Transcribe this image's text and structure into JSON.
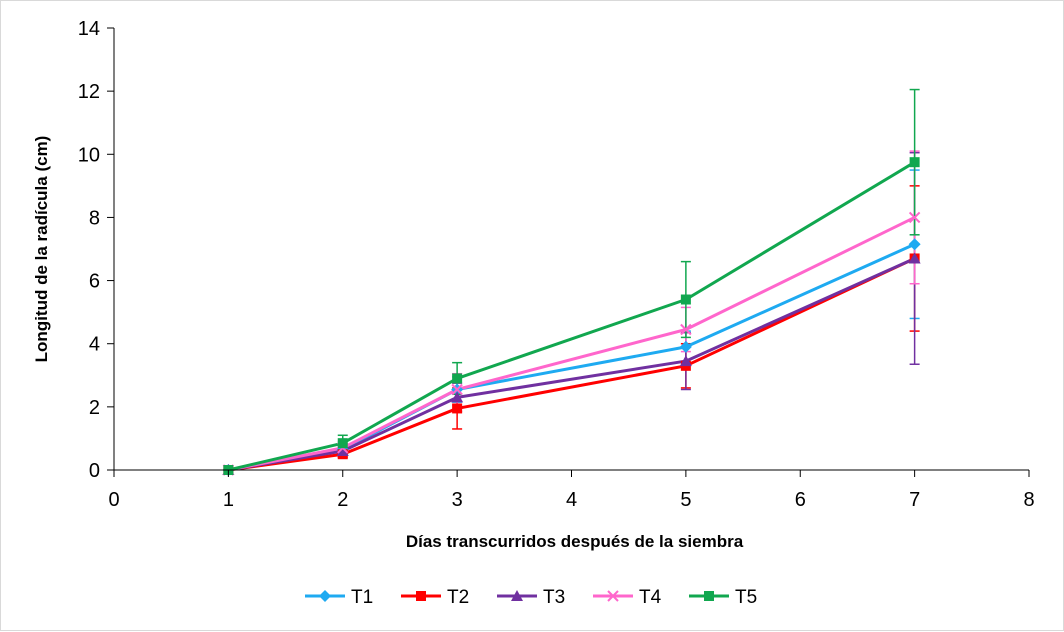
{
  "chart_data": {
    "type": "line",
    "title": "",
    "xlabel": "Días transcurridos después de la siembra",
    "ylabel": "Longitud de la radícula (cm)",
    "xlim": [
      0,
      8
    ],
    "ylim": [
      0,
      14
    ],
    "xticks": [
      0,
      1,
      2,
      3,
      4,
      5,
      6,
      7,
      8
    ],
    "yticks": [
      0,
      2,
      4,
      6,
      8,
      10,
      12,
      14
    ],
    "grid": false,
    "legend_position": "bottom",
    "x": [
      1,
      2,
      3,
      5,
      7
    ],
    "series": [
      {
        "name": "T1",
        "color": "#1eaaf1",
        "marker": "diamond",
        "values": [
          0.0,
          0.65,
          2.55,
          3.9,
          7.15
        ],
        "error": [
          0.0,
          0.15,
          0.4,
          0.5,
          2.35
        ]
      },
      {
        "name": "T2",
        "color": "#ff0000",
        "marker": "square",
        "values": [
          0.0,
          0.5,
          1.95,
          3.3,
          6.7
        ],
        "error": [
          0.0,
          0.1,
          0.65,
          0.7,
          2.3
        ]
      },
      {
        "name": "T3",
        "color": "#7030a0",
        "marker": "triangle",
        "values": [
          0.0,
          0.6,
          2.3,
          3.45,
          6.7
        ],
        "error": [
          0.0,
          0.15,
          0.45,
          0.9,
          3.35
        ]
      },
      {
        "name": "T4",
        "color": "#ff66cc",
        "marker": "x",
        "values": [
          0.0,
          0.7,
          2.55,
          4.45,
          8.0
        ],
        "error": [
          0.0,
          0.2,
          0.5,
          0.7,
          2.1
        ]
      },
      {
        "name": "T5",
        "color": "#11a74f",
        "marker": "square",
        "values": [
          0.0,
          0.85,
          2.9,
          5.4,
          9.75
        ],
        "error": [
          0.0,
          0.25,
          0.5,
          1.2,
          2.3
        ]
      }
    ]
  }
}
